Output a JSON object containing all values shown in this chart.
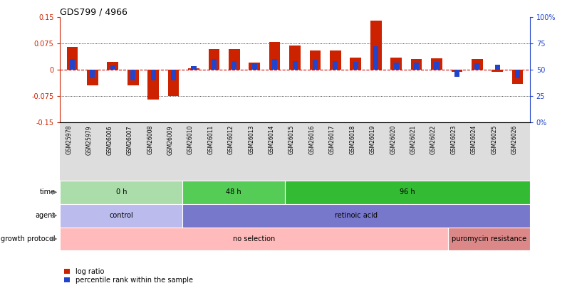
{
  "title": "GDS799 / 4966",
  "samples": [
    "GSM25978",
    "GSM25979",
    "GSM26006",
    "GSM26007",
    "GSM26008",
    "GSM26009",
    "GSM26010",
    "GSM26011",
    "GSM26012",
    "GSM26013",
    "GSM26014",
    "GSM26015",
    "GSM26016",
    "GSM26017",
    "GSM26018",
    "GSM26019",
    "GSM26020",
    "GSM26021",
    "GSM26022",
    "GSM26023",
    "GSM26024",
    "GSM26025",
    "GSM26026"
  ],
  "log_ratio": [
    0.065,
    -0.045,
    0.022,
    -0.045,
    -0.085,
    -0.075,
    0.005,
    0.06,
    0.06,
    0.02,
    0.08,
    0.07,
    0.055,
    0.055,
    0.035,
    0.14,
    0.035,
    0.03,
    0.032,
    -0.005,
    0.03,
    -0.005,
    -0.04
  ],
  "pct_rank_offset": [
    0.03,
    -0.025,
    0.012,
    -0.03,
    -0.03,
    -0.03,
    0.01,
    0.03,
    0.025,
    0.018,
    0.03,
    0.025,
    0.028,
    0.025,
    0.022,
    0.068,
    0.02,
    0.02,
    0.022,
    -0.02,
    0.018,
    0.015,
    -0.025
  ],
  "ylim": [
    -0.15,
    0.15
  ],
  "y2lim": [
    0,
    100
  ],
  "yticks": [
    -0.15,
    -0.075,
    0,
    0.075,
    0.15
  ],
  "ytick_labels": [
    "-0.15",
    "-0.075",
    "0",
    "0.075",
    "0.15"
  ],
  "y2ticks": [
    0,
    25,
    50,
    75,
    100
  ],
  "y2tick_labels": [
    "0%",
    "25",
    "50",
    "75",
    "100%"
  ],
  "hlines": [
    0.075,
    -0.075
  ],
  "bar_color_red": "#cc2200",
  "bar_color_blue": "#2244cc",
  "zero_line_color": "#cc0000",
  "xtick_bg": "#dddddd",
  "time_groups": [
    {
      "label": "0 h",
      "start": 0,
      "end": 6,
      "color": "#aaddaa"
    },
    {
      "label": "48 h",
      "start": 6,
      "end": 11,
      "color": "#55cc55"
    },
    {
      "label": "96 h",
      "start": 11,
      "end": 23,
      "color": "#33bb33"
    }
  ],
  "agent_groups": [
    {
      "label": "control",
      "start": 0,
      "end": 6,
      "color": "#bbbbee"
    },
    {
      "label": "retinoic acid",
      "start": 6,
      "end": 23,
      "color": "#7777cc"
    }
  ],
  "growth_groups": [
    {
      "label": "no selection",
      "start": 0,
      "end": 19,
      "color": "#ffbbbb"
    },
    {
      "label": "puromycin resistance",
      "start": 19,
      "end": 23,
      "color": "#dd8888"
    }
  ],
  "row_labels": [
    "time",
    "agent",
    "growth protocol"
  ],
  "legend_items": [
    {
      "label": "log ratio",
      "color": "#cc2200"
    },
    {
      "label": "percentile rank within the sample",
      "color": "#2244cc"
    }
  ]
}
